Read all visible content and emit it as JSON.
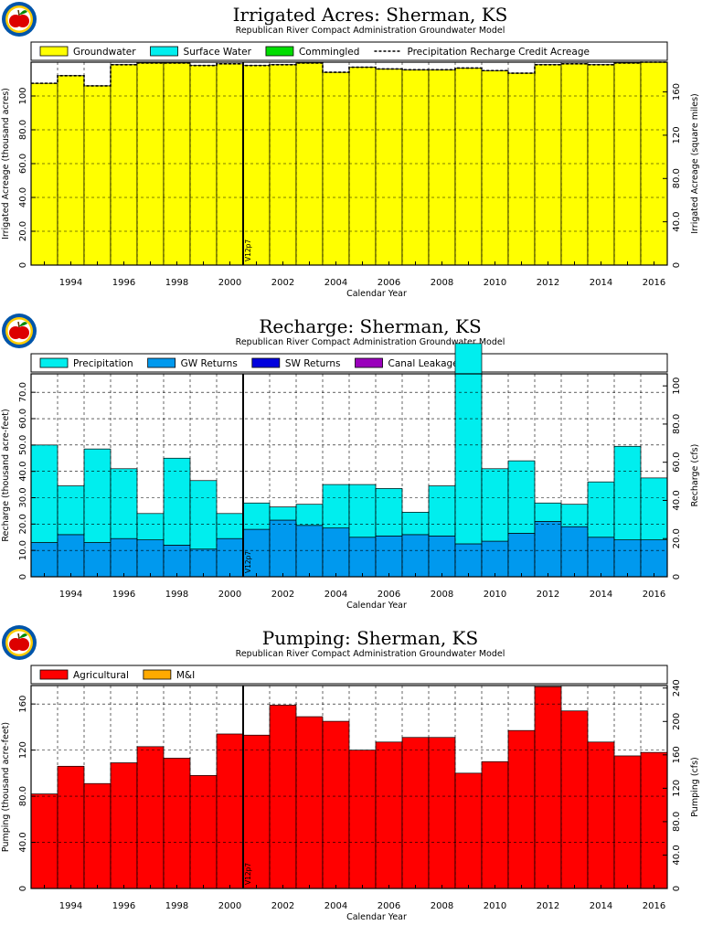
{
  "colors": {
    "groundwater": "#ffff00",
    "surface_water": "#00eeee",
    "commingled": "#00dd00",
    "precipitation": "#00eeee",
    "gw_returns": "#0099ee",
    "sw_returns": "#0000dd",
    "canal_leakage": "#9900bb",
    "agricultural": "#ff0000",
    "mi": "#ffaa00",
    "logo_red": "#dd0000",
    "logo_ring": "#ffcc00",
    "logo_outer": "#0055aa"
  },
  "icons": [
    "apple-logo-icon"
  ],
  "chart_data": [
    {
      "type": "bar",
      "title": "Irrigated Acres: Sherman, KS",
      "subtitle": "Republican River Compact Administration Groundwater Model",
      "xlabel": "Calendar Year",
      "ylabel": "Irrigated Acreage (thousand acres)",
      "ylabel_right": "Irrigated Acreage (square miles)",
      "marker": {
        "x": 2000.5,
        "label": "V12p7"
      },
      "xlim": [
        1992.5,
        2016.5
      ],
      "ylim": [
        0,
        120
      ],
      "yticks": [
        0,
        20.0,
        40.0,
        60.0,
        80.0,
        100
      ],
      "ytick_labels": [
        "0",
        "20.0",
        "40.0",
        "60.0",
        "80.0",
        "100"
      ],
      "ylim_right": [
        0,
        187.5
      ],
      "yticks_right": [
        0,
        40.0,
        80.0,
        120,
        160
      ],
      "ytick_labels_right": [
        "0",
        "40.0",
        "80.0",
        "120",
        "160"
      ],
      "xticks": [
        1994,
        1996,
        1998,
        2000,
        2002,
        2004,
        2006,
        2008,
        2010,
        2012,
        2014,
        2016
      ],
      "xtick_labels": [
        "1994",
        "1996",
        "1998",
        "2000",
        "2002",
        "2004",
        "2006",
        "2008",
        "2010",
        "2012",
        "2014",
        "2016"
      ],
      "legend": [
        {
          "label": "Groundwater",
          "kind": "box",
          "color_key": "groundwater"
        },
        {
          "label": "Surface Water",
          "kind": "box",
          "color_key": "surface_water"
        },
        {
          "label": "Commingled",
          "kind": "box",
          "color_key": "commingled"
        },
        {
          "label": "Precipitation Recharge Credit Acreage",
          "kind": "dash",
          "color_key": ""
        }
      ],
      "legend_position": "top",
      "grid": true,
      "x": [
        1993,
        1994,
        1995,
        1996,
        1997,
        1998,
        1999,
        2000,
        2001,
        2002,
        2003,
        2004,
        2005,
        2006,
        2007,
        2008,
        2009,
        2010,
        2011,
        2012,
        2013,
        2014,
        2015,
        2016
      ],
      "series": [
        {
          "name": "Groundwater",
          "color_key": "groundwater",
          "values": [
            107.5,
            112,
            106,
            118.5,
            119.5,
            119.5,
            118,
            119,
            118,
            118.5,
            119.5,
            114,
            117,
            116,
            115.5,
            115.5,
            116.5,
            115,
            113.5,
            118.5,
            119,
            118.5,
            119.5,
            120
          ]
        },
        {
          "name": "Surface Water",
          "color_key": "surface_water",
          "values": [
            0,
            0,
            0,
            0,
            0,
            0,
            0,
            0,
            0,
            0,
            0,
            0,
            0,
            0,
            0,
            0,
            0,
            0,
            0,
            0,
            0,
            0,
            0,
            0
          ]
        },
        {
          "name": "Commingled",
          "color_key": "commingled",
          "values": [
            0,
            0,
            0,
            0,
            0,
            0,
            0,
            0,
            0,
            0,
            0,
            0,
            0,
            0,
            0,
            0,
            0,
            0,
            0,
            0,
            0,
            0,
            0,
            0
          ]
        }
      ],
      "line": {
        "name": "Precipitation Recharge Credit Acreage",
        "style": "dashed",
        "values": [
          107.5,
          112,
          106,
          118.5,
          119.5,
          119.5,
          118,
          119,
          118,
          118.5,
          119.5,
          114,
          117,
          116,
          115.5,
          115.5,
          116.5,
          115,
          113.5,
          118.5,
          119,
          118.5,
          119.5,
          120
        ]
      }
    },
    {
      "type": "bar",
      "title": "Recharge: Sherman, KS",
      "subtitle": "Republican River Compact Administration Groundwater Model",
      "xlabel": "Calendar Year",
      "ylabel": "Recharge (thousand acre-feet)",
      "ylabel_right": "Recharge (cfs)",
      "marker": {
        "x": 2000.5,
        "label": "V12p7"
      },
      "xlim": [
        1992.5,
        2016.5
      ],
      "ylim": [
        0,
        77
      ],
      "yticks": [
        0,
        10.0,
        20.0,
        30.0,
        40.0,
        50.0,
        60.0,
        70.0
      ],
      "ytick_labels": [
        "0",
        "10.0",
        "20.0",
        "30.0",
        "40.0",
        "50.0",
        "60.0",
        "70.0"
      ],
      "ylim_right": [
        0,
        106.3
      ],
      "yticks_right": [
        0,
        20.0,
        40.0,
        60.0,
        80.0,
        100
      ],
      "ytick_labels_right": [
        "0",
        "20.0",
        "40.0",
        "60.0",
        "80.0",
        "100"
      ],
      "xticks": [
        1994,
        1996,
        1998,
        2000,
        2002,
        2004,
        2006,
        2008,
        2010,
        2012,
        2014,
        2016
      ],
      "xtick_labels": [
        "1994",
        "1996",
        "1998",
        "2000",
        "2002",
        "2004",
        "2006",
        "2008",
        "2010",
        "2012",
        "2014",
        "2016"
      ],
      "legend": [
        {
          "label": "Precipitation",
          "kind": "box",
          "color_key": "precipitation"
        },
        {
          "label": "GW Returns",
          "kind": "box",
          "color_key": "gw_returns"
        },
        {
          "label": "SW Returns",
          "kind": "box",
          "color_key": "sw_returns"
        },
        {
          "label": "Canal Leakage",
          "kind": "box",
          "color_key": "canal_leakage"
        }
      ],
      "legend_position": "top",
      "grid": true,
      "x": [
        1993,
        1994,
        1995,
        1996,
        1997,
        1998,
        1999,
        2000,
        2001,
        2002,
        2003,
        2004,
        2005,
        2006,
        2007,
        2008,
        2009,
        2010,
        2011,
        2012,
        2013,
        2014,
        2015,
        2016
      ],
      "series": [
        {
          "name": "GW Returns",
          "color_key": "gw_returns",
          "values": [
            13,
            16,
            13,
            14.5,
            14,
            12,
            10.5,
            14.5,
            18,
            21.5,
            19.5,
            18.5,
            15,
            15.5,
            16,
            15.5,
            12.5,
            13.5,
            16.5,
            21,
            19,
            15,
            14,
            14
          ]
        },
        {
          "name": "Precipitation",
          "color_key": "precipitation",
          "values": [
            37,
            18.5,
            35.5,
            26.5,
            10,
            33,
            26,
            9.5,
            10,
            5,
            8,
            16.5,
            20,
            18,
            8.5,
            19,
            76,
            27.5,
            27.5,
            7,
            8.5,
            21,
            35.5,
            23.5
          ]
        },
        {
          "name": "SW Returns",
          "color_key": "sw_returns",
          "values": [
            0,
            0,
            0,
            0,
            0,
            0,
            0,
            0,
            0,
            0,
            0,
            0,
            0,
            0,
            0,
            0,
            0,
            0,
            0,
            0,
            0,
            0,
            0,
            0
          ]
        },
        {
          "name": "Canal Leakage",
          "color_key": "canal_leakage",
          "values": [
            0,
            0,
            0,
            0,
            0,
            0,
            0,
            0,
            0,
            0,
            0,
            0,
            0,
            0,
            0,
            0,
            0,
            0,
            0,
            0,
            0,
            0,
            0,
            0
          ]
        }
      ]
    },
    {
      "type": "bar",
      "title": "Pumping: Sherman, KS",
      "subtitle": "Republican River Compact Administration Groundwater Model",
      "xlabel": "Calendar Year",
      "ylabel": "Pumping (thousand acre-feet)",
      "ylabel_right": "Pumping (cfs)",
      "marker": {
        "x": 2000.5,
        "label": "V12p7"
      },
      "xlim": [
        1992.5,
        2016.5
      ],
      "ylim": [
        0,
        176
      ],
      "yticks": [
        0,
        40.0,
        80.0,
        120,
        160
      ],
      "ytick_labels": [
        "0",
        "40.0",
        "80.0",
        "120",
        "160"
      ],
      "ylim_right": [
        0,
        243
      ],
      "yticks_right": [
        0,
        40.0,
        80.0,
        120,
        160,
        200,
        240
      ],
      "ytick_labels_right": [
        "0",
        "40.0",
        "80.0",
        "120",
        "160",
        "200",
        "240"
      ],
      "xticks": [
        1994,
        1996,
        1998,
        2000,
        2002,
        2004,
        2006,
        2008,
        2010,
        2012,
        2014,
        2016
      ],
      "xtick_labels": [
        "1994",
        "1996",
        "1998",
        "2000",
        "2002",
        "2004",
        "2006",
        "2008",
        "2010",
        "2012",
        "2014",
        "2016"
      ],
      "legend": [
        {
          "label": "Agricultural",
          "kind": "box",
          "color_key": "agricultural"
        },
        {
          "label": "M&I",
          "kind": "box",
          "color_key": "mi"
        }
      ],
      "legend_position": "top",
      "grid": true,
      "x": [
        1993,
        1994,
        1995,
        1996,
        1997,
        1998,
        1999,
        2000,
        2001,
        2002,
        2003,
        2004,
        2005,
        2006,
        2007,
        2008,
        2009,
        2010,
        2011,
        2012,
        2013,
        2014,
        2015,
        2016
      ],
      "series": [
        {
          "name": "Agricultural",
          "color_key": "agricultural",
          "values": [
            82,
            106,
            91,
            109,
            123,
            113,
            98,
            134,
            133,
            159,
            149,
            145,
            120,
            127,
            131,
            131,
            100,
            110,
            137,
            175,
            154,
            127,
            115,
            118
          ]
        },
        {
          "name": "M&I",
          "color_key": "mi",
          "values": [
            0,
            0,
            0,
            0,
            0,
            0,
            0,
            0,
            0,
            0,
            0,
            0,
            0,
            0,
            0,
            0,
            0,
            0,
            0,
            0,
            0,
            0,
            0,
            0
          ]
        }
      ]
    }
  ]
}
